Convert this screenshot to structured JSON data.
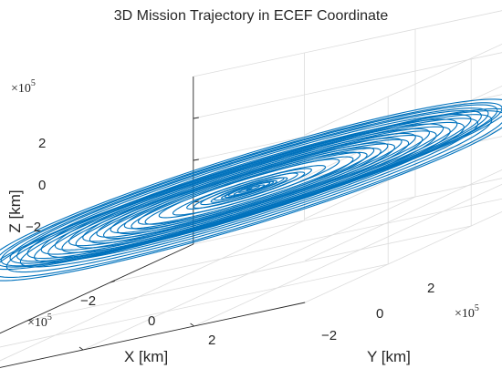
{
  "chart_data": {
    "type": "line",
    "projection": "3d",
    "title": "3D Mission Trajectory in ECEF Coordinate",
    "xlabel": "X [km]",
    "ylabel": "Y [km]",
    "zlabel": "Z [km]",
    "xlim": [
      -400000,
      400000
    ],
    "ylim": [
      -400000,
      400000
    ],
    "zlim": [
      -400000,
      400000
    ],
    "xticks": [
      -200000,
      0,
      200000
    ],
    "xtick_labels": [
      "−2",
      "0",
      "2"
    ],
    "yticks": [
      -200000,
      0,
      200000
    ],
    "ytick_labels": [
      "−2",
      "0",
      "2"
    ],
    "zticks": [
      -200000,
      0,
      200000
    ],
    "ztick_labels": [
      "−2",
      "0",
      "2"
    ],
    "exponent_base": "×10",
    "exponent_power": "5",
    "grid": true,
    "series": [
      {
        "color": "#0072bd",
        "loops": [
          {
            "radius": 4000,
            "z": 0
          },
          {
            "radius": 15000,
            "z": 2000
          },
          {
            "radius": 22000,
            "z": -2000
          },
          {
            "radius": 30000,
            "z": 1500
          },
          {
            "radius": 35000,
            "z": 0
          },
          {
            "radius": 40000,
            "z": -1500
          },
          {
            "radius": 50000,
            "z": 2500
          },
          {
            "radius": 55000,
            "z": -2500
          },
          {
            "radius": 70000,
            "z": 3000
          },
          {
            "radius": 80000,
            "z": -3000
          },
          {
            "radius": 90000,
            "z": 3500
          },
          {
            "radius": 110000,
            "z": -3500
          },
          {
            "radius": 130000,
            "z": 5000
          },
          {
            "radius": 150000,
            "z": -5000
          },
          {
            "radius": 160000,
            "z": 6000
          },
          {
            "radius": 170000,
            "z": -6000
          },
          {
            "radius": 180000,
            "z": 7000
          },
          {
            "radius": 190000,
            "z": -7000
          },
          {
            "radius": 200000,
            "z": 8000
          },
          {
            "radius": 210000,
            "z": -8000
          },
          {
            "radius": 220000,
            "z": 9000
          },
          {
            "radius": 230000,
            "z": -9000
          },
          {
            "radius": 240000,
            "z": 10000
          },
          {
            "radius": 250000,
            "z": -10000
          },
          {
            "radius": 260000,
            "z": 11000
          },
          {
            "radius": 270000,
            "z": -11000
          },
          {
            "radius": 280000,
            "z": 12000
          },
          {
            "radius": 290000,
            "z": -12000
          },
          {
            "radius": 300000,
            "z": 13000
          },
          {
            "radius": 310000,
            "z": -13000
          },
          {
            "radius": 320000,
            "z": 15000
          },
          {
            "radius": 330000,
            "z": -15000
          },
          {
            "radius": 335000,
            "z": 17000
          },
          {
            "radius": 345000,
            "z": 18000
          },
          {
            "radius": 350000,
            "z": -18000
          },
          {
            "radius": 358000,
            "z": 20000
          },
          {
            "radius": 365000,
            "z": 22000
          },
          {
            "radius": 370000,
            "z": -22000
          },
          {
            "radius": 378000,
            "z": 25000
          },
          {
            "radius": 382000,
            "z": -25000
          }
        ]
      }
    ]
  }
}
